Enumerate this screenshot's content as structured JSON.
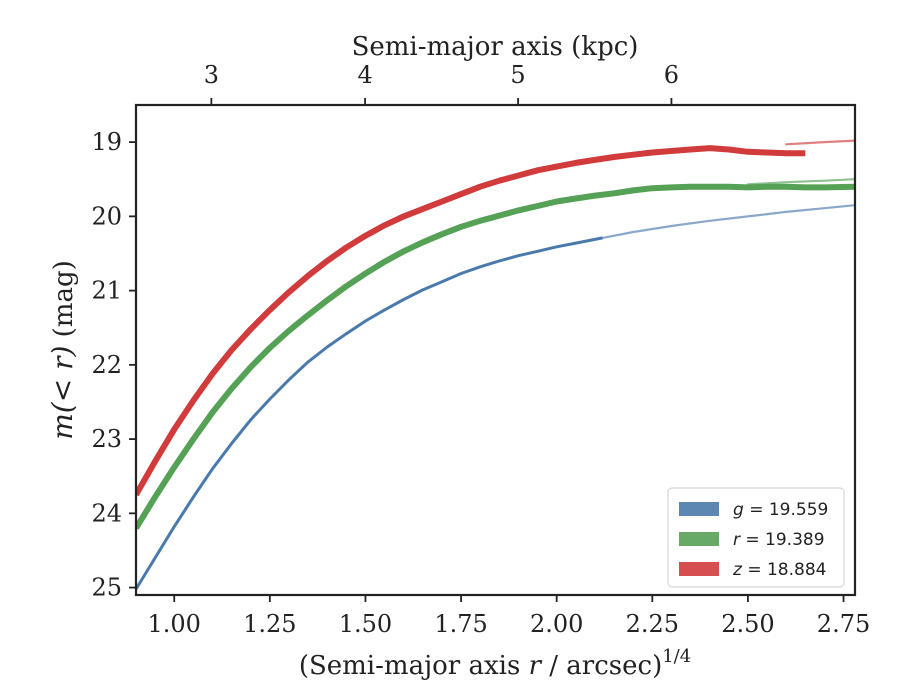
{
  "chart_data": {
    "type": "line",
    "title": "",
    "xlabel": "(Semi-major axis r / arcsec)^1/4",
    "xlabel_parts": {
      "pre": "(Semi-major axis ",
      "var": "r",
      "post": " / arcsec)",
      "sup": "1/4"
    },
    "ylabel": "m(< r) (mag)",
    "ylabel_parts": {
      "var": "m(< r)",
      "unit": " (mag)"
    },
    "top_xlabel": "Semi-major axis (kpc)",
    "xlim": [
      0.9,
      2.78
    ],
    "ylim": [
      25.1,
      18.5
    ],
    "y_inverted": true,
    "x_ticks": [
      1.0,
      1.25,
      1.5,
      1.75,
      2.0,
      2.25,
      2.5,
      2.75
    ],
    "x_tick_labels": [
      "1.00",
      "1.25",
      "1.50",
      "1.75",
      "2.00",
      "2.25",
      "2.50",
      "2.75"
    ],
    "y_ticks": [
      19,
      20,
      21,
      22,
      23,
      24,
      25
    ],
    "y_tick_labels": [
      "19",
      "20",
      "21",
      "22",
      "23",
      "24",
      "25"
    ],
    "top_x_ticks": [
      {
        "label": "3",
        "x": 1.097
      },
      {
        "label": "4",
        "x": 1.499
      },
      {
        "label": "5",
        "x": 1.899
      },
      {
        "label": "6",
        "x": 2.3
      }
    ],
    "grid": false,
    "legend_position": "lower-right",
    "series": [
      {
        "name": "g = 19.559",
        "legend_var": "g",
        "legend_value": "19.559",
        "color": "#4a7aab",
        "band_width": 3,
        "model_end": 2.78,
        "x": [
          0.9,
          0.95,
          1.0,
          1.05,
          1.1,
          1.15,
          1.2,
          1.25,
          1.3,
          1.35,
          1.4,
          1.45,
          1.5,
          1.55,
          1.6,
          1.65,
          1.7,
          1.75,
          1.8,
          1.85,
          1.9,
          1.95,
          2.0,
          2.05,
          2.1,
          2.12
        ],
        "y": [
          25.02,
          24.6,
          24.18,
          23.78,
          23.4,
          23.06,
          22.74,
          22.46,
          22.2,
          21.96,
          21.76,
          21.58,
          21.41,
          21.26,
          21.12,
          20.99,
          20.88,
          20.77,
          20.68,
          20.6,
          20.53,
          20.47,
          20.41,
          20.36,
          20.31,
          20.29
        ],
        "model_x": [
          2.12,
          2.2,
          2.3,
          2.4,
          2.5,
          2.6,
          2.7,
          2.78
        ],
        "model_y": [
          20.29,
          20.21,
          20.13,
          20.06,
          20.0,
          19.94,
          19.89,
          19.85
        ]
      },
      {
        "name": "r = 19.389",
        "legend_var": "r",
        "legend_value": "19.389",
        "color": "#55a155",
        "band_width": 6,
        "model_end": 2.78,
        "x": [
          0.9,
          0.95,
          1.0,
          1.05,
          1.1,
          1.15,
          1.2,
          1.25,
          1.3,
          1.35,
          1.4,
          1.45,
          1.5,
          1.55,
          1.6,
          1.65,
          1.7,
          1.75,
          1.8,
          1.85,
          1.9,
          1.95,
          2.0,
          2.05,
          2.1,
          2.15,
          2.2,
          2.25,
          2.3,
          2.35,
          2.4,
          2.45,
          2.5,
          2.55,
          2.6,
          2.65,
          2.7,
          2.78
        ],
        "y": [
          24.2,
          23.78,
          23.38,
          23.0,
          22.64,
          22.32,
          22.03,
          21.77,
          21.54,
          21.33,
          21.13,
          20.94,
          20.77,
          20.61,
          20.47,
          20.35,
          20.24,
          20.14,
          20.06,
          19.99,
          19.92,
          19.86,
          19.8,
          19.76,
          19.72,
          19.69,
          19.65,
          19.62,
          19.61,
          19.6,
          19.6,
          19.6,
          19.61,
          19.6,
          19.6,
          19.61,
          19.61,
          19.6
        ],
        "model_x": [
          2.5,
          2.6,
          2.7,
          2.78
        ],
        "model_y": [
          19.57,
          19.54,
          19.52,
          19.5
        ]
      },
      {
        "name": "z = 18.884",
        "legend_var": "z",
        "legend_value": "18.884",
        "color": "#d13b3b",
        "band_width": 6,
        "model_end": 2.78,
        "x": [
          0.9,
          0.95,
          1.0,
          1.05,
          1.1,
          1.15,
          1.2,
          1.25,
          1.3,
          1.35,
          1.4,
          1.45,
          1.5,
          1.55,
          1.6,
          1.65,
          1.7,
          1.75,
          1.8,
          1.85,
          1.9,
          1.95,
          2.0,
          2.05,
          2.1,
          2.15,
          2.2,
          2.25,
          2.3,
          2.35,
          2.4,
          2.45,
          2.5,
          2.55,
          2.6,
          2.65
        ],
        "y": [
          23.75,
          23.3,
          22.87,
          22.48,
          22.12,
          21.8,
          21.52,
          21.26,
          21.02,
          20.8,
          20.6,
          20.42,
          20.26,
          20.12,
          20.0,
          19.9,
          19.8,
          19.7,
          19.6,
          19.52,
          19.45,
          19.38,
          19.33,
          19.28,
          19.24,
          19.2,
          19.17,
          19.14,
          19.12,
          19.1,
          19.08,
          19.1,
          19.13,
          19.14,
          19.15,
          19.15
        ],
        "model_x": [
          2.6,
          2.7,
          2.78
        ],
        "model_y": [
          19.03,
          19.0,
          18.98
        ]
      }
    ]
  }
}
